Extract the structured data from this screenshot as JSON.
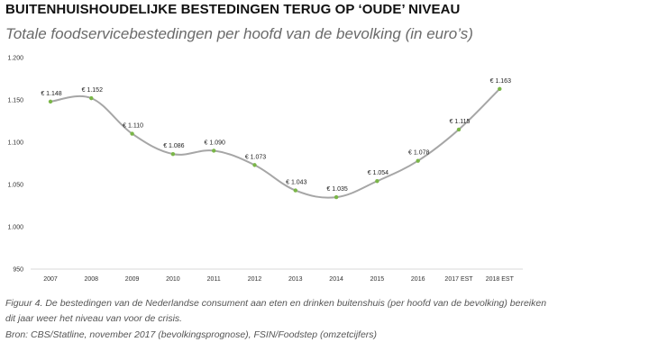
{
  "header": {
    "title": "BUITENHUISHOUDELIJKE BESTEDINGEN TERUG OP ‘OUDE’ NIVEAU",
    "subtitle": "Totale foodservicebestedingen per hoofd van de bevolking (in euro’s)"
  },
  "caption": {
    "line1": "Figuur 4. De bestedingen van de Nederlandse consument aan eten en drinken buitenshuis (per hoofd van de bevolking) bereiken",
    "line2": "dit jaar weer het niveau van voor de crisis.",
    "line3": "Bron: CBS/Statline, november 2017 (bevolkingsprognose), FSIN/Foodstep (omzetcijfers)"
  },
  "chart_data": {
    "type": "line",
    "title": "Totale foodservicebestedingen per hoofd van de bevolking (in euro’s)",
    "categories": [
      "2007",
      "2008",
      "2009",
      "2010",
      "2011",
      "2012",
      "2013",
      "2014",
      "2015",
      "2016",
      "2017 EST",
      "2018 EST"
    ],
    "values": [
      1148,
      1152,
      1110,
      1086,
      1090,
      1073,
      1043,
      1035,
      1054,
      1078,
      1115,
      1163
    ],
    "data_labels": [
      "€ 1.148",
      "€ 1.152",
      "€ 1.110",
      "€ 1.086",
      "€ 1.090",
      "€ 1.073",
      "€ 1.043",
      "€ 1.035",
      "€ 1.054",
      "€ 1.078",
      "€ 1.115",
      "€ 1.163"
    ],
    "ylim": [
      950,
      1200
    ],
    "yticks": [
      1200,
      1150,
      1100,
      1050,
      1000,
      950
    ],
    "ytick_labels": [
      "1.200",
      "1.150",
      "1.100",
      "1.050",
      "1.000",
      "950"
    ],
    "xlabel": "",
    "ylabel": "",
    "grid": false,
    "colors": {
      "line": "#a6a6a6",
      "marker": "#7ab648",
      "axis": "#d9d9d9"
    }
  }
}
